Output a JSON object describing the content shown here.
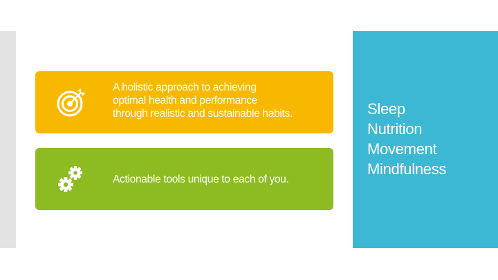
{
  "cards": [
    {
      "icon": "target-icon",
      "color": "#f9b800",
      "lines": [
        "A holistic approach to achieving",
        "optimal health and performance",
        "through realistic and sustainable habits."
      ]
    },
    {
      "icon": "gears-icon",
      "color": "#8cbc22",
      "lines": [
        "Actionable tools unique to each of you."
      ]
    }
  ],
  "side_panel": {
    "color": "#3db8d4",
    "items": [
      "Sleep",
      "Nutrition",
      "Movement",
      "Mindfulness"
    ]
  }
}
